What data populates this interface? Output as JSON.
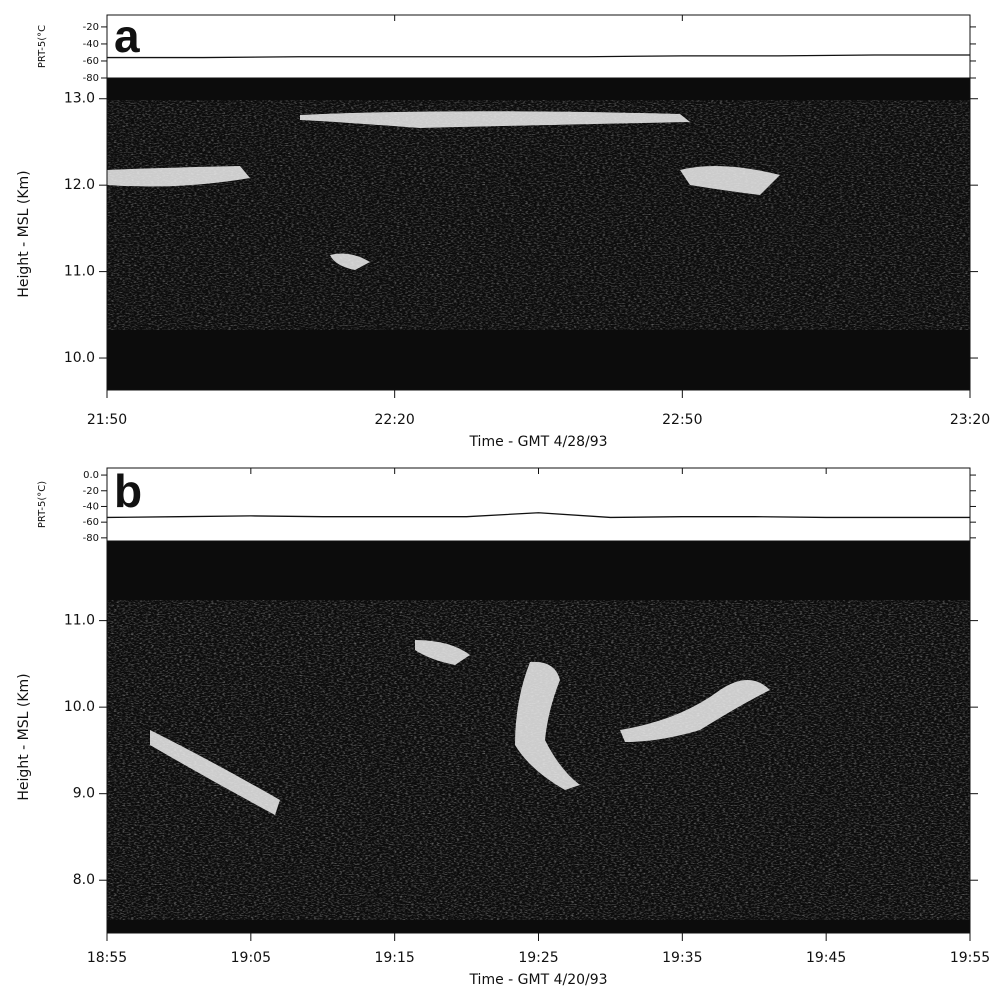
{
  "chart_data": [
    {
      "type": "line",
      "label": "a",
      "ylabel": "PRT-5(°C",
      "ylim": [
        -80,
        -6
      ],
      "yticks": [
        -20,
        -40,
        -60,
        -80
      ],
      "x": [
        1310,
        1320,
        1330,
        1340,
        1350,
        1360,
        1370,
        1380,
        1390,
        1400
      ],
      "values": [
        -56,
        -56,
        -55,
        -55,
        -55,
        -55,
        -54,
        -54,
        -53,
        -53
      ],
      "color": "#111111",
      "image_ylabel": "Height - MSL (Km)",
      "image_ylim": [
        9.63,
        13.24
      ],
      "image_yticks": [
        {
          "value": 10,
          "label": "10.0"
        },
        {
          "value": 11,
          "label": "11.0"
        },
        {
          "value": 12,
          "label": "12.0"
        },
        {
          "value": 13,
          "label": "13.0"
        }
      ],
      "xlim": [
        1310,
        1400
      ],
      "xticks": [
        {
          "value": 1310,
          "label": "21:50"
        },
        {
          "value": 1340,
          "label": "22:20"
        },
        {
          "value": 1370,
          "label": "22:50"
        },
        {
          "value": 1400,
          "label": "23:20"
        }
      ],
      "xlabel": "Time - GMT   4/28/93"
    },
    {
      "type": "line",
      "label": "b",
      "ylabel": "PRT-5(°C)",
      "ylim": [
        -84,
        9
      ],
      "yticks": [
        {
          "value": 0,
          "label": "0.0"
        },
        -20,
        -40,
        -60,
        -80
      ],
      "x": [
        1135,
        1140,
        1145,
        1150,
        1155,
        1160,
        1165,
        1170,
        1175,
        1180,
        1185,
        1190,
        1195
      ],
      "values": [
        -54,
        -53,
        -52,
        -53,
        -53,
        -53,
        -48,
        -54,
        -53,
        -53,
        -54,
        -54,
        -54
      ],
      "color": "#111111",
      "image_ylabel": "Height - MSL (Km)",
      "image_ylim": [
        7.39,
        11.92
      ],
      "image_yticks": [
        {
          "value": 8,
          "label": "8.0"
        },
        {
          "value": 9,
          "label": "9.0"
        },
        {
          "value": 10,
          "label": "10.0"
        },
        {
          "value": 11,
          "label": "11.0"
        }
      ],
      "xlim": [
        1135,
        1195
      ],
      "xticks": [
        {
          "value": 1135,
          "label": "18:55"
        },
        {
          "value": 1145,
          "label": "19:05"
        },
        {
          "value": 1155,
          "label": "19:15"
        },
        {
          "value": 1165,
          "label": "19:25"
        },
        {
          "value": 1175,
          "label": "19:35"
        },
        {
          "value": 1185,
          "label": "19:45"
        },
        {
          "value": 1195,
          "label": "19:55"
        }
      ],
      "xlabel": "Time - GMT   4/20/93"
    }
  ]
}
